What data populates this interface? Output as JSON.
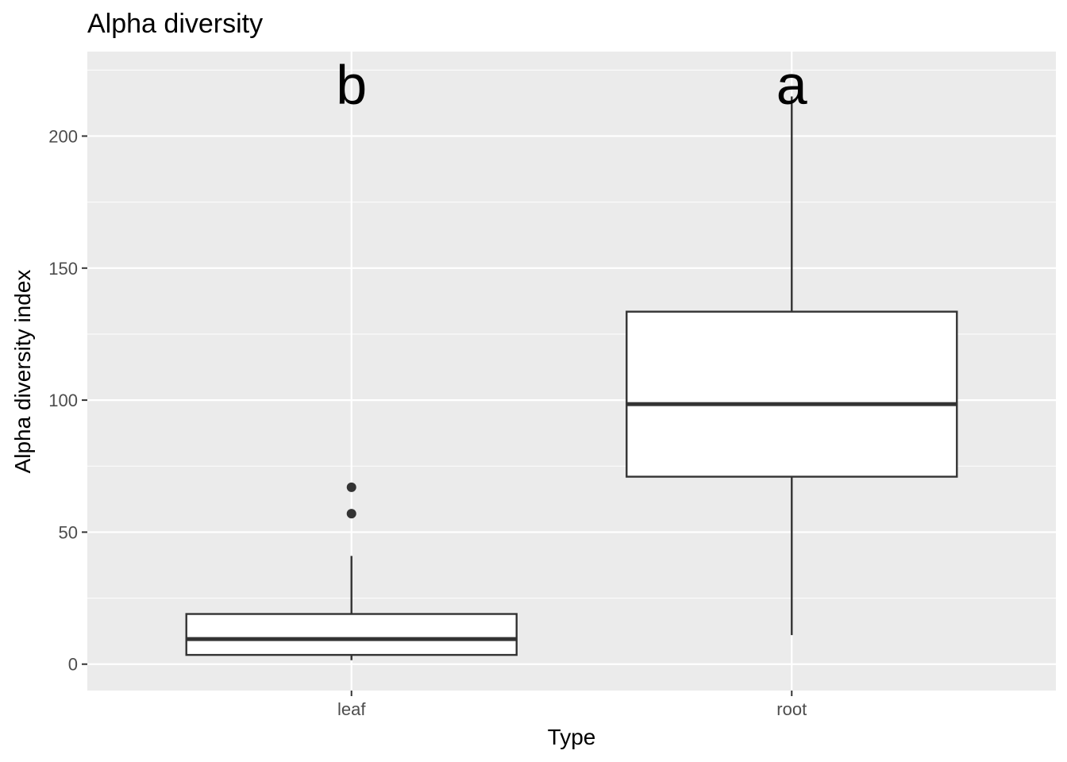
{
  "chart_data": {
    "type": "box",
    "title": "Alpha diversity",
    "xlabel": "Type",
    "ylabel": "Alpha diversity index",
    "ylim": [
      -10,
      232
    ],
    "yticks": [
      0,
      50,
      100,
      150,
      200
    ],
    "ytick_labels": [
      "0",
      "50",
      "100",
      "150",
      "200"
    ],
    "categories": [
      "leaf",
      "root"
    ],
    "boxes": [
      {
        "category": "leaf",
        "whisker_low": 1.5,
        "q1": 3.5,
        "median": 9.5,
        "q3": 19,
        "whisker_high": 41,
        "outliers": [
          57,
          67
        ],
        "letter": "b"
      },
      {
        "category": "root",
        "whisker_low": 11,
        "q1": 71,
        "median": 98.5,
        "q3": 133.5,
        "whisker_high": 215,
        "outliers": [],
        "letter": "a"
      }
    ],
    "grid": true
  },
  "colors": {
    "panel": "#ebebeb",
    "grid_major": "#ffffff",
    "grid_minor": "#f5f5f5",
    "box_fill": "#ffffff",
    "box_line": "#333333",
    "tick": "#333333"
  }
}
